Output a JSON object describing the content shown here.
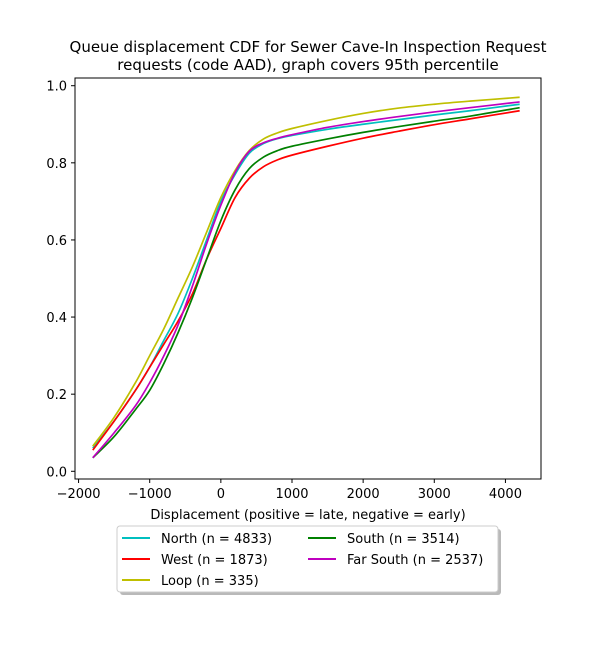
{
  "chart_data": {
    "type": "line",
    "title_lines": [
      "Queue displacement CDF for Sewer Cave-In Inspection Request",
      "requests (code AAD), graph covers 95th percentile"
    ],
    "xlabel": "Displacement (positive = late, negative = early)",
    "ylabel": "",
    "xlim": [
      -2050,
      4500
    ],
    "ylim": [
      -0.02,
      1.02
    ],
    "xticks": [
      -2000,
      -1000,
      0,
      1000,
      2000,
      3000,
      4000
    ],
    "xtick_labels": [
      "−2000",
      "−1000",
      "0",
      "1000",
      "2000",
      "3000",
      "4000"
    ],
    "yticks": [
      0.0,
      0.2,
      0.4,
      0.6,
      0.8,
      1.0
    ],
    "ytick_labels": [
      "0.0",
      "0.2",
      "0.4",
      "0.6",
      "0.8",
      "1.0"
    ],
    "grid": false,
    "legend_position": "below",
    "series": [
      {
        "name": "North (n = 4833)",
        "color": "#00bfbf",
        "x": [
          -1800,
          -1500,
          -1200,
          -1000,
          -800,
          -600,
          -400,
          -200,
          0,
          200,
          400,
          600,
          800,
          1000,
          1500,
          2000,
          2500,
          3000,
          3500,
          4200
        ],
        "y": [
          0.06,
          0.13,
          0.21,
          0.27,
          0.34,
          0.41,
          0.5,
          0.6,
          0.7,
          0.77,
          0.825,
          0.85,
          0.863,
          0.871,
          0.887,
          0.9,
          0.912,
          0.924,
          0.935,
          0.952
        ]
      },
      {
        "name": "West (n = 1873)",
        "color": "#ff0000",
        "x": [
          -1800,
          -1500,
          -1200,
          -1000,
          -800,
          -600,
          -400,
          -200,
          0,
          200,
          400,
          600,
          800,
          1000,
          1500,
          2000,
          2500,
          3000,
          3500,
          4200
        ],
        "y": [
          0.055,
          0.13,
          0.21,
          0.27,
          0.33,
          0.39,
          0.46,
          0.55,
          0.63,
          0.71,
          0.76,
          0.79,
          0.808,
          0.82,
          0.843,
          0.864,
          0.882,
          0.899,
          0.914,
          0.935
        ]
      },
      {
        "name": "Loop (n = 335)",
        "color": "#bfbf00",
        "x": [
          -1800,
          -1500,
          -1200,
          -1000,
          -800,
          -600,
          -400,
          -200,
          0,
          200,
          400,
          600,
          800,
          1000,
          1500,
          2000,
          2500,
          3000,
          3500,
          4200
        ],
        "y": [
          0.065,
          0.14,
          0.23,
          0.3,
          0.37,
          0.45,
          0.53,
          0.62,
          0.71,
          0.78,
          0.832,
          0.862,
          0.878,
          0.889,
          0.91,
          0.928,
          0.942,
          0.952,
          0.96,
          0.97
        ]
      },
      {
        "name": "South (n = 3514)",
        "color": "#008000",
        "x": [
          -1800,
          -1500,
          -1200,
          -1000,
          -800,
          -600,
          -400,
          -200,
          0,
          200,
          400,
          600,
          800,
          1000,
          1500,
          2000,
          2500,
          3000,
          3500,
          4200
        ],
        "y": [
          0.035,
          0.09,
          0.16,
          0.21,
          0.28,
          0.36,
          0.45,
          0.55,
          0.65,
          0.73,
          0.785,
          0.815,
          0.832,
          0.843,
          0.862,
          0.879,
          0.894,
          0.908,
          0.921,
          0.943
        ]
      },
      {
        "name": "Far South (n = 2537)",
        "color": "#bf00bf",
        "x": [
          -1800,
          -1500,
          -1200,
          -1000,
          -800,
          -600,
          -400,
          -200,
          0,
          200,
          400,
          600,
          800,
          1000,
          1500,
          2000,
          2500,
          3000,
          3500,
          4200
        ],
        "y": [
          0.035,
          0.1,
          0.17,
          0.23,
          0.3,
          0.38,
          0.48,
          0.59,
          0.69,
          0.775,
          0.83,
          0.852,
          0.864,
          0.873,
          0.892,
          0.907,
          0.92,
          0.932,
          0.943,
          0.958
        ]
      }
    ]
  }
}
